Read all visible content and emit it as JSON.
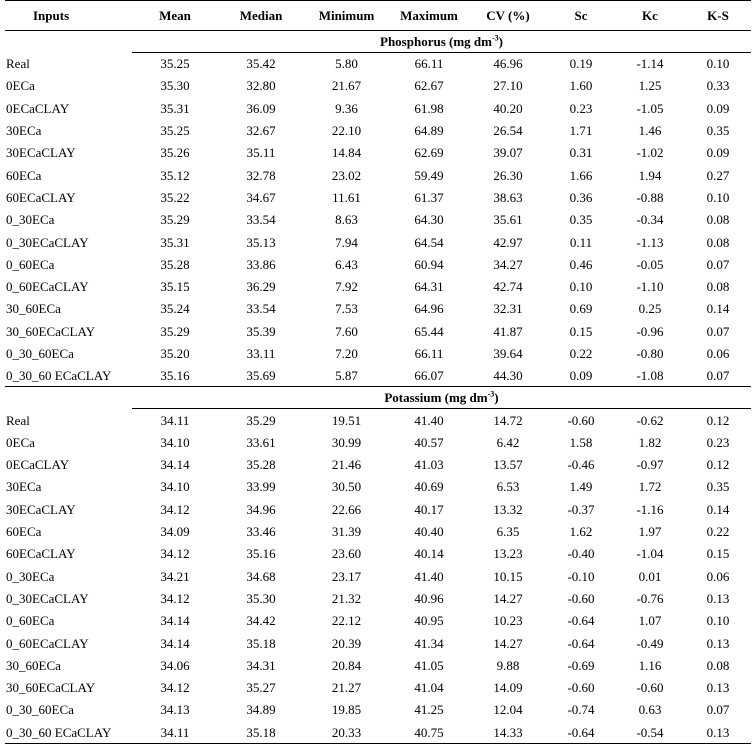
{
  "columns": [
    "Inputs",
    "Mean",
    "Median",
    "Minimum",
    "Maximum",
    "CV (%)",
    "Sc",
    "Kc",
    "K-S"
  ],
  "sections": [
    {
      "title": "Phosphorus (mg dm",
      "unit_exp": "-3",
      "title_end": ")",
      "rows": [
        [
          "Real",
          "35.25",
          "35.42",
          "5.80",
          "66.11",
          "46.96",
          "0.19",
          "-1.14",
          "0.10"
        ],
        [
          "0ECa",
          "35.30",
          "32.80",
          "21.67",
          "62.67",
          "27.10",
          "1.60",
          "1.25",
          "0.33"
        ],
        [
          "0ECaCLAY",
          "35.31",
          "36.09",
          "9.36",
          "61.98",
          "40.20",
          "0.23",
          "-1.05",
          "0.09"
        ],
        [
          "30ECa",
          "35.25",
          "32.67",
          "22.10",
          "64.89",
          "26.54",
          "1.71",
          "1.46",
          "0.35"
        ],
        [
          "30ECaCLAY",
          "35.26",
          "35.11",
          "14.84",
          "62.69",
          "39.07",
          "0.31",
          "-1.02",
          "0.09"
        ],
        [
          "60ECa",
          "35.12",
          "32.78",
          "23.02",
          "59.49",
          "26.30",
          "1.66",
          "1.94",
          "0.27"
        ],
        [
          "60ECaCLAY",
          "35.22",
          "34.67",
          "11.61",
          "61.37",
          "38.63",
          "0.36",
          "-0.88",
          "0.10"
        ],
        [
          "0_30ECa",
          "35.29",
          "33.54",
          "8.63",
          "64.30",
          "35.61",
          "0.35",
          "-0.34",
          "0.08"
        ],
        [
          "0_30ECaCLAY",
          "35.31",
          "35.13",
          "7.94",
          "64.54",
          "42.97",
          "0.11",
          "-1.13",
          "0.08"
        ],
        [
          "0_60ECa",
          "35.28",
          "33.86",
          "6.43",
          "60.94",
          "34.27",
          "0.46",
          "-0.05",
          "0.07"
        ],
        [
          "0_60ECaCLAY",
          "35.15",
          "36.29",
          "7.92",
          "64.31",
          "42.74",
          "0.10",
          "-1.10",
          "0.08"
        ],
        [
          "30_60ECa",
          "35.24",
          "33.54",
          "7.53",
          "64.96",
          "32.31",
          "0.69",
          "0.25",
          "0.14"
        ],
        [
          "30_60ECaCLAY",
          "35.29",
          "35.39",
          "7.60",
          "65.44",
          "41.87",
          "0.15",
          "-0.96",
          "0.07"
        ],
        [
          "0_30_60ECa",
          "35.20",
          "33.11",
          "7.20",
          "66.11",
          "39.64",
          "0.22",
          "-0.80",
          "0.06"
        ],
        [
          "0_30_60 ECaCLAY",
          "35.16",
          "35.69",
          "5.87",
          "66.07",
          "44.30",
          "0.09",
          "-1.08",
          "0.07"
        ]
      ]
    },
    {
      "title": "Potassium (mg dm",
      "unit_exp": "-3",
      "title_end": ")",
      "rows": [
        [
          "Real",
          "34.11",
          "35.29",
          "19.51",
          "41.40",
          "14.72",
          "-0.60",
          "-0.62",
          "0.12"
        ],
        [
          "0ECa",
          "34.10",
          "33.61",
          "30.99",
          "40.57",
          "6.42",
          "1.58",
          "1.82",
          "0.23"
        ],
        [
          "0ECaCLAY",
          "34.14",
          "35.28",
          "21.46",
          "41.03",
          "13.57",
          "-0.46",
          "-0.97",
          "0.12"
        ],
        [
          "30ECa",
          "34.10",
          "33.99",
          "30.50",
          "40.69",
          "6.53",
          "1.49",
          "1.72",
          "0.35"
        ],
        [
          "30ECaCLAY",
          "34.12",
          "34.96",
          "22.66",
          "40.17",
          "13.32",
          "-0.37",
          "-1.16",
          "0.14"
        ],
        [
          "60ECa",
          "34.09",
          "33.46",
          "31.39",
          "40.40",
          "6.35",
          "1.62",
          "1.97",
          "0.22"
        ],
        [
          "60ECaCLAY",
          "34.12",
          "35.16",
          "23.60",
          "40.14",
          "13.23",
          "-0.40",
          "-1.04",
          "0.15"
        ],
        [
          "0_30ECa",
          "34.21",
          "34.68",
          "23.17",
          "41.40",
          "10.15",
          "-0.10",
          "0.01",
          "0.06"
        ],
        [
          "0_30ECaCLAY",
          "34.12",
          "35.30",
          "21.32",
          "40.96",
          "14.27",
          "-0.60",
          "-0.76",
          "0.13"
        ],
        [
          "0_60ECa",
          "34.14",
          "34.42",
          "22.12",
          "40.95",
          "10.23",
          "-0.64",
          "1.07",
          "0.10"
        ],
        [
          "0_60ECaCLAY",
          "34.14",
          "35.18",
          "20.39",
          "41.34",
          "14.27",
          "-0.64",
          "-0.49",
          "0.13"
        ],
        [
          "30_60ECa",
          "34.06",
          "34.31",
          "20.84",
          "41.05",
          "9.88",
          "-0.69",
          "1.16",
          "0.08"
        ],
        [
          "30_60ECaCLAY",
          "34.12",
          "35.27",
          "21.27",
          "41.04",
          "14.09",
          "-0.60",
          "-0.60",
          "0.13"
        ],
        [
          "0_30_60ECa",
          "34.13",
          "34.89",
          "19.85",
          "41.25",
          "12.04",
          "-0.74",
          "0.63",
          "0.07"
        ],
        [
          "0_30_60 ECaCLAY",
          "34.11",
          "35.18",
          "20.33",
          "40.75",
          "14.33",
          "-0.64",
          "-0.54",
          "0.13"
        ]
      ]
    }
  ]
}
